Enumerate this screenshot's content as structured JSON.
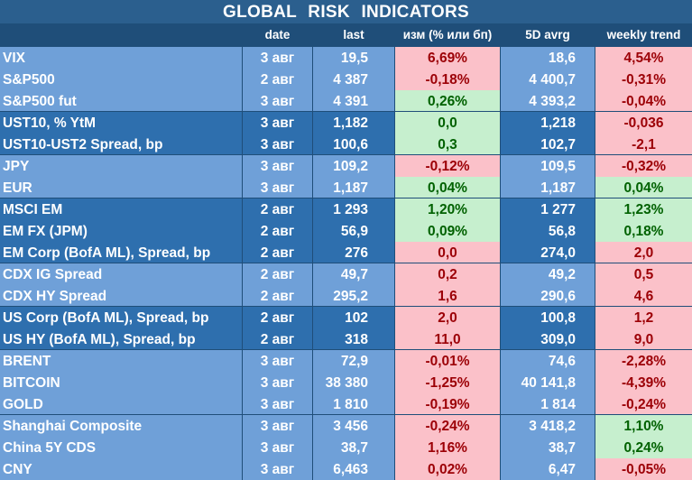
{
  "title": "GLOBAL   RISK   INDICATORS",
  "headers": [
    "",
    "date",
    "last",
    "изм (% или бп)",
    "5D avrg",
    "weekly trend"
  ],
  "rows": [
    [
      "VIX",
      "3 авг",
      "19,5",
      "6,69%",
      "18,6",
      "4,54%"
    ],
    [
      "S&P500",
      "2 авг",
      "4 387",
      "-0,18%",
      "4 400,7",
      "-0,31%"
    ],
    [
      "S&P500 fut",
      "3 авг",
      "4 391",
      "0,26%",
      "4 393,2",
      "-0,04%"
    ],
    [
      "UST10, % YtM",
      "3 авг",
      "1,182",
      "0,0",
      "1,218",
      "-0,036"
    ],
    [
      "UST10-UST2 Spread, bp",
      "3 авг",
      "100,6",
      "0,3",
      "102,7",
      "-2,1"
    ],
    [
      "JPY",
      "3 авг",
      "109,2",
      "-0,12%",
      "109,5",
      "-0,32%"
    ],
    [
      "EUR",
      "3 авг",
      "1,187",
      "0,04%",
      "1,187",
      "0,04%"
    ],
    [
      "MSCI EM",
      "2 авг",
      "1 293",
      "1,20%",
      "1 277",
      "1,23%"
    ],
    [
      "EM FX (JPM)",
      "2 авг",
      "56,9",
      "0,09%",
      "56,8",
      "0,18%"
    ],
    [
      "EM Corp (BofA ML), Spread, bp",
      "2 авг",
      "276",
      "0,0",
      "274,0",
      "2,0"
    ],
    [
      "CDX IG Spread",
      "2 авг",
      "49,7",
      "0,2",
      "49,2",
      "0,5"
    ],
    [
      "CDX HY Spread",
      "2 авг",
      "295,2",
      "1,6",
      "290,6",
      "4,6"
    ],
    [
      "US Corp (BofA ML), Spread, bp",
      "2 авг",
      "102",
      "2,0",
      "100,8",
      "1,2"
    ],
    [
      "US HY (BofA ML), Spread, bp",
      "2 авг",
      "318",
      "11,0",
      "309,0",
      "9,0"
    ],
    [
      "BRENT",
      "3 авг",
      "72,9",
      "-0,01%",
      "74,6",
      "-2,28%"
    ],
    [
      "BITCOIN",
      "3 авг",
      "38 380",
      "-1,25%",
      "40 141,8",
      "-4,39%"
    ],
    [
      "GOLD",
      "3 авг",
      "1 810",
      "-0,19%",
      "1 814",
      "-0,24%"
    ],
    [
      "Shanghai Composite",
      "3 авг",
      "3 456",
      "-0,24%",
      "3 418,2",
      "1,10%"
    ],
    [
      "China 5Y CDS",
      "3 авг",
      "38,7",
      "1,16%",
      "38,7",
      "0,24%"
    ],
    [
      "CNY",
      "3 авг",
      "6,463",
      "0,02%",
      "6,47",
      "-0,05%"
    ]
  ],
  "row_group_shade": [
    "light",
    "light",
    "light",
    "dark",
    "dark",
    "light",
    "light",
    "dark",
    "dark",
    "dark",
    "light",
    "light",
    "dark",
    "dark",
    "light",
    "light",
    "light",
    "light",
    "light",
    "light"
  ],
  "change_status": [
    "neg",
    "neg",
    "pos",
    "pos",
    "pos",
    "neg",
    "pos",
    "pos",
    "pos",
    "neg",
    "neg",
    "neg",
    "neg",
    "neg",
    "neg",
    "neg",
    "neg",
    "neg",
    "neg",
    "neg"
  ],
  "trend_status": [
    "neg",
    "neg",
    "neg",
    "neg",
    "neg",
    "neg",
    "pos",
    "pos",
    "pos",
    "neg",
    "neg",
    "neg",
    "neg",
    "neg",
    "neg",
    "neg",
    "neg",
    "pos",
    "pos",
    "neg"
  ],
  "colors": {
    "title_bg": "#2b5f8e",
    "header_bg": "#1f4e79",
    "row_light": "#6fa0d8",
    "row_dark": "#2e6fae",
    "negative_bg": "#fbc1c9",
    "negative_text": "#9c0006",
    "positive_bg": "#c6efce",
    "positive_text": "#006100"
  }
}
